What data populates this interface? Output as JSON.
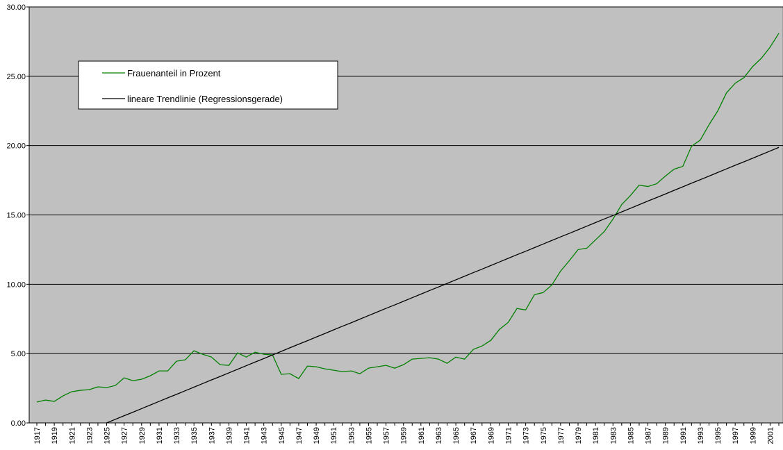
{
  "chart_data": {
    "type": "line",
    "categories": [
      "1917",
      null,
      "1919",
      null,
      "1921",
      null,
      "1923",
      null,
      "1925",
      null,
      "1927",
      null,
      "1929",
      null,
      "1931",
      null,
      "1933",
      null,
      "1935",
      null,
      "1937",
      null,
      "1939",
      null,
      "1941",
      null,
      "1943",
      null,
      "1945",
      null,
      "1947",
      null,
      "1949",
      null,
      "1951",
      null,
      "1953",
      null,
      "1955",
      null,
      "1957",
      null,
      "1959",
      null,
      "1961",
      null,
      "1963",
      null,
      "1965",
      null,
      "1967",
      null,
      "1969",
      null,
      "1971",
      null,
      "1973",
      null,
      "1975",
      null,
      "1977",
      null,
      "1979",
      null,
      "1981",
      null,
      "1983",
      null,
      "1985",
      null,
      "1987",
      null,
      "1989",
      null,
      "1991",
      null,
      "1993",
      null,
      "1995",
      null,
      "1997",
      null,
      "1999",
      null,
      "2001",
      null
    ],
    "series": [
      {
        "name": "Frauenanteil in Prozent",
        "color": "#008000",
        "values": [
          1.5,
          1.65,
          1.55,
          1.95,
          2.25,
          2.35,
          2.4,
          2.6,
          2.55,
          2.7,
          3.25,
          3.05,
          3.15,
          3.4,
          3.75,
          3.75,
          4.45,
          4.55,
          5.2,
          4.95,
          4.75,
          4.2,
          4.15,
          5.05,
          4.75,
          5.1,
          4.95,
          4.9,
          3.5,
          3.55,
          3.2,
          4.1,
          4.05,
          3.9,
          3.8,
          3.7,
          3.75,
          3.55,
          3.95,
          4.05,
          4.15,
          3.95,
          4.2,
          4.6,
          4.65,
          4.7,
          4.6,
          4.3,
          4.75,
          4.6,
          5.3,
          5.55,
          5.95,
          6.75,
          7.25,
          8.25,
          8.15,
          9.25,
          9.4,
          9.95,
          10.95,
          11.7,
          12.5,
          12.6,
          13.2,
          13.8,
          14.7,
          15.75,
          16.4,
          17.15,
          17.05,
          17.25,
          17.8,
          18.3,
          18.5,
          19.95,
          20.4,
          21.5,
          22.5,
          23.8,
          24.5,
          24.9,
          25.7,
          26.3,
          27.1,
          28.1
        ]
      },
      {
        "name": "lineare Trendlinie (Regressionsgerade)",
        "color": "#000000",
        "values": [
          null,
          null,
          null,
          null,
          null,
          null,
          null,
          null,
          0.0,
          0.26,
          0.52,
          0.77,
          1.03,
          1.29,
          1.55,
          1.81,
          2.06,
          2.32,
          2.58,
          2.84,
          3.1,
          3.35,
          3.61,
          3.87,
          4.13,
          4.39,
          4.64,
          4.9,
          5.16,
          5.42,
          5.68,
          5.93,
          6.19,
          6.45,
          6.71,
          6.97,
          7.22,
          7.48,
          7.74,
          8.0,
          8.26,
          8.51,
          8.77,
          9.03,
          9.29,
          9.55,
          9.8,
          10.06,
          10.32,
          10.58,
          10.84,
          11.09,
          11.35,
          11.61,
          11.87,
          12.13,
          12.38,
          12.64,
          12.9,
          13.16,
          13.42,
          13.67,
          13.93,
          14.19,
          14.45,
          14.71,
          14.96,
          15.22,
          15.48,
          15.74,
          16.0,
          16.25,
          16.51,
          16.77,
          17.03,
          17.29,
          17.54,
          17.8,
          18.06,
          18.32,
          18.58,
          18.83,
          19.09,
          19.35,
          19.61,
          19.87
        ]
      }
    ],
    "ylim": [
      0,
      30
    ],
    "yticks": [
      {
        "value": 0,
        "label": "0.00"
      },
      {
        "value": 5,
        "label": "5.00"
      },
      {
        "value": 10,
        "label": "10.00"
      },
      {
        "value": 15,
        "label": "15.00"
      },
      {
        "value": 20,
        "label": "20.00"
      },
      {
        "value": 25,
        "label": "25.00"
      },
      {
        "value": 30,
        "label": "30.00"
      }
    ],
    "grid": true,
    "background": "#c0c0c0",
    "legend": "upper-left"
  }
}
